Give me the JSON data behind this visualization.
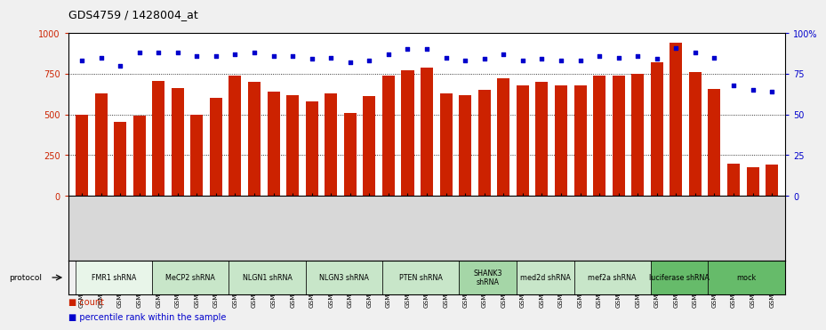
{
  "title": "GDS4759 / 1428004_at",
  "samples": [
    "GSM1145756",
    "GSM1145757",
    "GSM1145758",
    "GSM1145759",
    "GSM1145764",
    "GSM1145765",
    "GSM1145766",
    "GSM1145767",
    "GSM1145768",
    "GSM1145769",
    "GSM1145770",
    "GSM1145771",
    "GSM1145772",
    "GSM1145773",
    "GSM1145774",
    "GSM1145775",
    "GSM1145776",
    "GSM1145777",
    "GSM1145778",
    "GSM1145779",
    "GSM1145780",
    "GSM1145781",
    "GSM1145782",
    "GSM1145783",
    "GSM1145784",
    "GSM1145785",
    "GSM1145786",
    "GSM1145787",
    "GSM1145788",
    "GSM1145789",
    "GSM1145760",
    "GSM1145761",
    "GSM1145762",
    "GSM1145763",
    "GSM1145942",
    "GSM1145943",
    "GSM1145944"
  ],
  "counts": [
    500,
    630,
    455,
    490,
    705,
    660,
    500,
    600,
    740,
    700,
    640,
    620,
    580,
    630,
    510,
    610,
    740,
    770,
    790,
    630,
    620,
    650,
    720,
    680,
    700,
    680,
    680,
    740,
    740,
    750,
    820,
    940,
    760,
    655,
    200,
    175,
    190
  ],
  "percentiles": [
    83,
    85,
    80,
    88,
    88,
    88,
    86,
    86,
    87,
    88,
    86,
    86,
    84,
    85,
    82,
    83,
    87,
    90,
    90,
    85,
    83,
    84,
    87,
    83,
    84,
    83,
    83,
    86,
    85,
    86,
    84,
    91,
    88,
    85,
    68,
    65,
    64
  ],
  "groups": [
    {
      "label": "FMR1 shRNA",
      "start": 0,
      "end": 4,
      "color": "#e8f5e9"
    },
    {
      "label": "MeCP2 shRNA",
      "start": 4,
      "end": 8,
      "color": "#c8e6c9"
    },
    {
      "label": "NLGN1 shRNA",
      "start": 8,
      "end": 12,
      "color": "#c8e6c9"
    },
    {
      "label": "NLGN3 shRNA",
      "start": 12,
      "end": 16,
      "color": "#c8e6c9"
    },
    {
      "label": "PTEN shRNA",
      "start": 16,
      "end": 20,
      "color": "#c8e6c9"
    },
    {
      "label": "SHANK3\nshRNA",
      "start": 20,
      "end": 23,
      "color": "#a5d6a7"
    },
    {
      "label": "med2d shRNA",
      "start": 23,
      "end": 26,
      "color": "#c8e6c9"
    },
    {
      "label": "mef2a shRNA",
      "start": 26,
      "end": 30,
      "color": "#c8e6c9"
    },
    {
      "label": "luciferase shRNA",
      "start": 30,
      "end": 33,
      "color": "#66bb6a"
    },
    {
      "label": "mock",
      "start": 33,
      "end": 37,
      "color": "#66bb6a"
    }
  ],
  "bar_color": "#cc2200",
  "dot_color": "#0000cc",
  "ylim_left": [
    0,
    1000
  ],
  "ylim_right": [
    0,
    100
  ],
  "yticks_left": [
    0,
    250,
    500,
    750,
    1000
  ],
  "ytick_labels_left": [
    "0",
    "250",
    "500",
    "750",
    "1000"
  ],
  "yticks_right": [
    0,
    25,
    50,
    75,
    100
  ],
  "ytick_labels_right": [
    "0",
    "25",
    "50",
    "75",
    "100%"
  ],
  "bg_color": "#f0f0f0",
  "plot_bg_color": "#ffffff"
}
